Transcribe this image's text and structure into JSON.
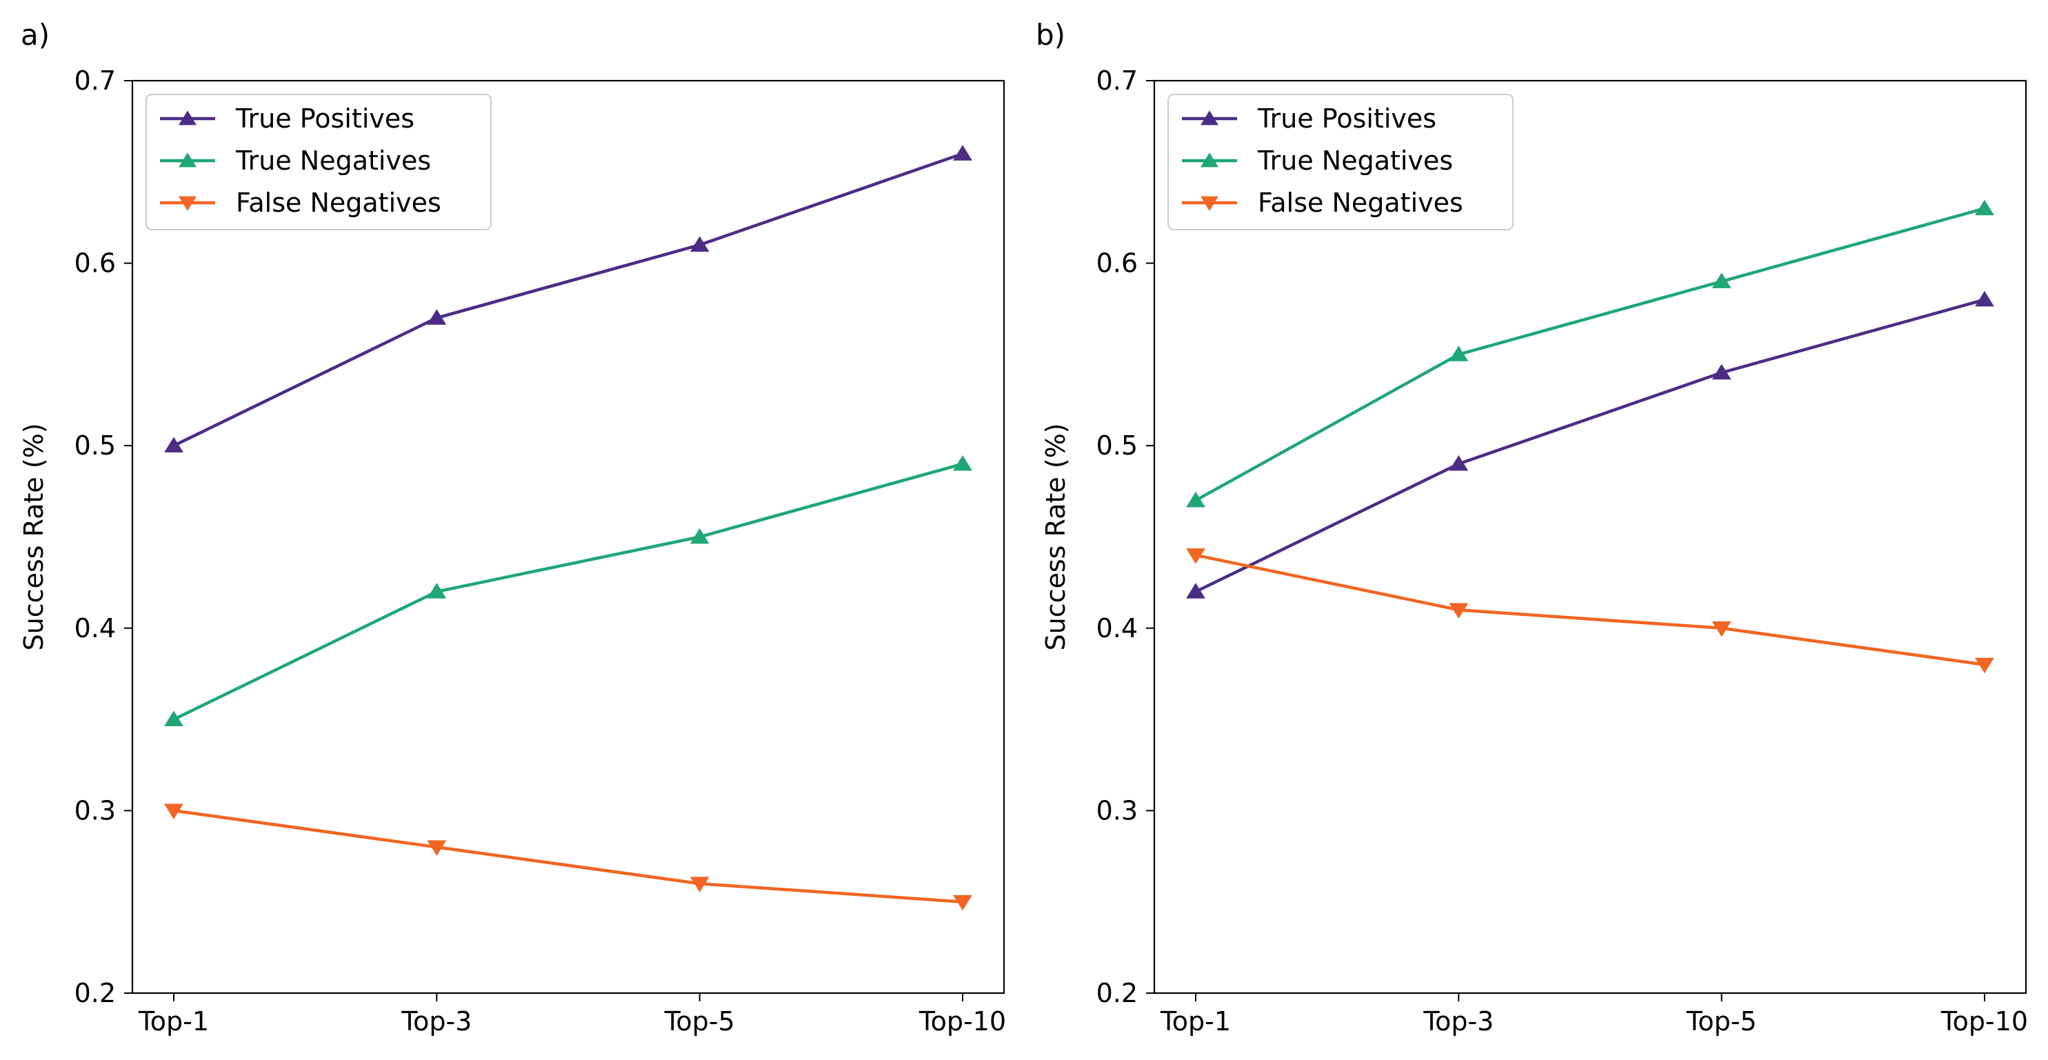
{
  "chart_data": [
    {
      "panel_label": "a)",
      "type": "line",
      "categories": [
        "Top-1",
        "Top-3",
        "Top-5",
        "Top-10"
      ],
      "ylabel": "Success Rate (%)",
      "xlabel": "",
      "ylim": [
        0.2,
        0.7
      ],
      "yticks": [
        "0.2",
        "0.3",
        "0.4",
        "0.5",
        "0.6",
        "0.7"
      ],
      "grid": false,
      "legend_position": "upper-left",
      "series": [
        {
          "name": "True Positives",
          "values": [
            0.5,
            0.57,
            0.61,
            0.66
          ],
          "color": "#4d2c86",
          "marker": "triangle-up"
        },
        {
          "name": "True Negatives",
          "values": [
            0.35,
            0.42,
            0.45,
            0.49
          ],
          "color": "#1fa774",
          "marker": "triangle-up"
        },
        {
          "name": "False Negatives",
          "values": [
            0.3,
            0.28,
            0.26,
            0.25
          ],
          "color": "#f26522",
          "marker": "triangle-down"
        }
      ]
    },
    {
      "panel_label": "b)",
      "type": "line",
      "categories": [
        "Top-1",
        "Top-3",
        "Top-5",
        "Top-10"
      ],
      "ylabel": "Success Rate (%)",
      "xlabel": "",
      "ylim": [
        0.2,
        0.7
      ],
      "yticks": [
        "0.2",
        "0.3",
        "0.4",
        "0.5",
        "0.6",
        "0.7"
      ],
      "grid": false,
      "legend_position": "upper-left",
      "series": [
        {
          "name": "True Positives",
          "values": [
            0.42,
            0.49,
            0.54,
            0.58
          ],
          "color": "#4d2c86",
          "marker": "triangle-up"
        },
        {
          "name": "True Negatives",
          "values": [
            0.47,
            0.55,
            0.59,
            0.63
          ],
          "color": "#1fa774",
          "marker": "triangle-up"
        },
        {
          "name": "False Negatives",
          "values": [
            0.44,
            0.41,
            0.4,
            0.38
          ],
          "color": "#f26522",
          "marker": "triangle-down"
        }
      ]
    }
  ]
}
